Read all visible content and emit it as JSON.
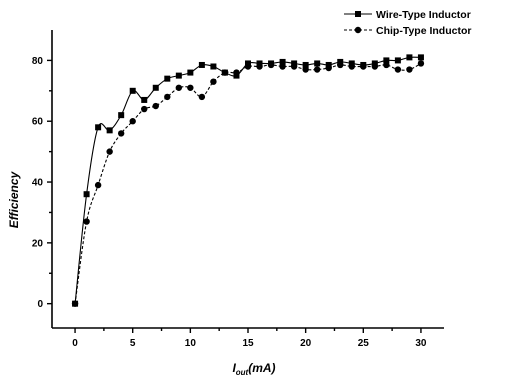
{
  "chart_data": {
    "type": "line",
    "title": "",
    "ylabel": "Efficiency",
    "xlabel": {
      "main": "I",
      "subscript": "out",
      "suffix": "(mA)"
    },
    "xlim": [
      -2,
      32
    ],
    "ylim": [
      -8,
      90
    ],
    "x_ticks": [
      0,
      5,
      10,
      15,
      20,
      25,
      30
    ],
    "x_tick_labels": [
      "0",
      "5",
      "10",
      "15",
      "20",
      "25",
      "30"
    ],
    "y_ticks": [
      0,
      20,
      40,
      60,
      80
    ],
    "y_tick_labels": [
      "0",
      "20",
      "40",
      "60",
      "80"
    ],
    "grid": false,
    "legend_position": "top-right",
    "series": [
      {
        "name": "Wire-Type Inductor",
        "marker": "square",
        "line_style": "solid",
        "color": "#000000",
        "x": [
          0,
          1,
          2,
          3,
          4,
          5,
          6,
          7,
          8,
          9,
          10,
          11,
          12,
          13,
          14,
          15,
          16,
          17,
          18,
          19,
          20,
          21,
          22,
          23,
          24,
          25,
          26,
          27,
          28,
          29,
          30
        ],
        "y": [
          0,
          36,
          58,
          57,
          62,
          70,
          67,
          71,
          74,
          75,
          76,
          78.5,
          78,
          76,
          75,
          79,
          79,
          79,
          79.5,
          79,
          78.5,
          79,
          78.5,
          79.5,
          79,
          78.5,
          79,
          80,
          80,
          81,
          81
        ]
      },
      {
        "name": "Chip-Type Inductor",
        "marker": "circle",
        "line_style": "dashed",
        "color": "#000000",
        "x": [
          0,
          1,
          2,
          3,
          4,
          5,
          6,
          7,
          8,
          9,
          10,
          11,
          12,
          13,
          14,
          15,
          16,
          17,
          18,
          19,
          20,
          21,
          22,
          23,
          24,
          25,
          26,
          27,
          28,
          29,
          30
        ],
        "y": [
          0,
          27,
          39,
          50,
          56,
          60,
          64,
          65,
          68,
          71,
          71,
          68,
          73,
          76,
          76,
          78,
          78,
          78.5,
          78,
          78,
          77,
          77,
          77.5,
          78.5,
          78,
          78,
          78,
          78.5,
          77,
          77,
          79
        ]
      }
    ]
  }
}
